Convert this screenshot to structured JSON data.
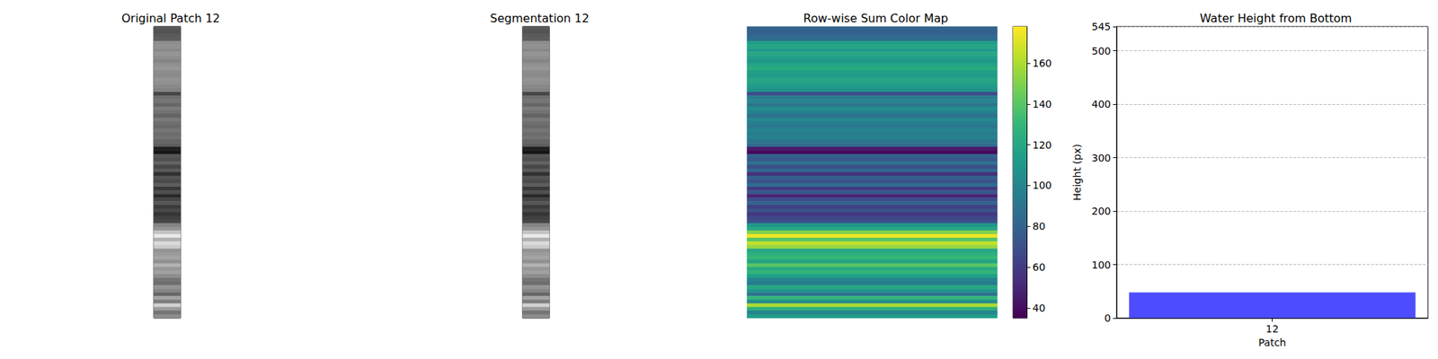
{
  "chart_data": [
    {
      "type": "image",
      "title": "Original Patch 12"
    },
    {
      "type": "image",
      "title": "Segmentation 12"
    },
    {
      "type": "heatmap",
      "title": "Row-wise Sum Color Map",
      "row_sums": [
        80,
        78,
        82,
        85,
        115,
        118,
        112,
        120,
        116,
        110,
        118,
        122,
        115,
        113,
        119,
        117,
        112,
        108,
        70,
        95,
        100,
        90,
        105,
        98,
        88,
        102,
        96,
        92,
        100,
        94,
        98,
        90,
        85,
        45,
        38,
        80,
        75,
        88,
        70,
        82,
        55,
        78,
        72,
        85,
        60,
        75,
        50,
        68,
        80,
        62,
        72,
        58,
        66,
        70,
        110,
        120,
        150,
        175,
        140,
        165,
        155,
        120,
        125,
        130,
        118,
        140,
        122,
        128,
        115,
        100,
        95,
        120,
        110,
        90,
        130,
        105,
        160,
        125,
        100,
        115
      ],
      "colorbar": {
        "range": [
          35,
          178
        ],
        "ticks": [
          40,
          60,
          80,
          100,
          120,
          140,
          160
        ]
      }
    },
    {
      "type": "bar",
      "title": "Water Height from Bottom",
      "x_label": "Patch",
      "y_label": "Height (px)",
      "categories": [
        "12"
      ],
      "values": [
        48
      ],
      "color": "#4d4dff",
      "ylim": [
        0,
        545
      ],
      "yticks": [
        0,
        100,
        200,
        300,
        400,
        500
      ],
      "grid": true
    }
  ]
}
